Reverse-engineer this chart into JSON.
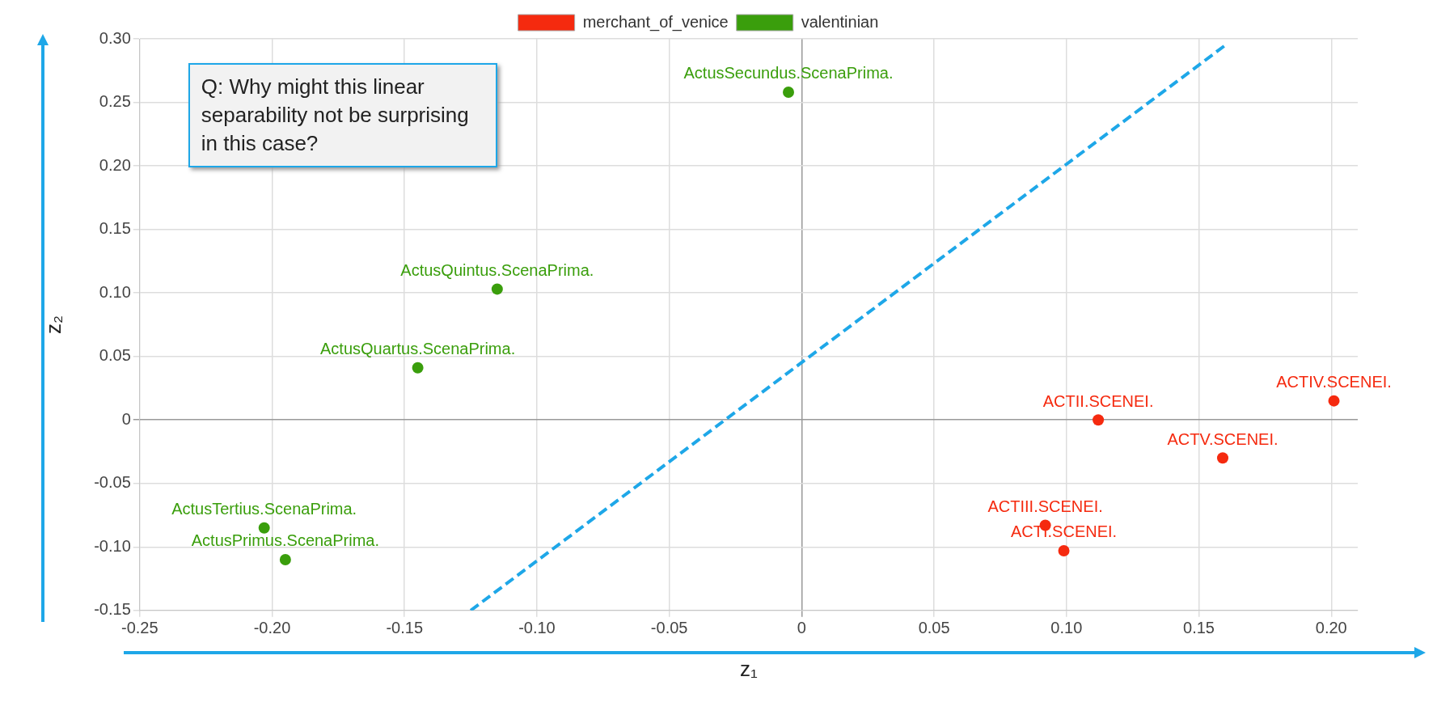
{
  "chart_data": {
    "type": "scatter",
    "xlabel": "z₁",
    "ylabel": "z₂",
    "legend": "top",
    "grid": true,
    "marker": "circle",
    "xlim": [
      -0.25,
      0.21
    ],
    "ylim": [
      -0.15,
      0.3
    ],
    "xticks": [
      {
        "value": -0.25,
        "label": "-0.25"
      },
      {
        "value": -0.2,
        "label": "-0.20"
      },
      {
        "value": -0.15,
        "label": "-0.15"
      },
      {
        "value": -0.1,
        "label": "-0.10"
      },
      {
        "value": -0.05,
        "label": "-0.05"
      },
      {
        "value": 0,
        "label": "0"
      },
      {
        "value": 0.05,
        "label": "0.05"
      },
      {
        "value": 0.1,
        "label": "0.10"
      },
      {
        "value": 0.15,
        "label": "0.15"
      },
      {
        "value": 0.2,
        "label": "0.20"
      }
    ],
    "yticks": [
      {
        "value": -0.15,
        "label": "-0.15"
      },
      {
        "value": -0.1,
        "label": "-0.10"
      },
      {
        "value": -0.05,
        "label": "-0.05"
      },
      {
        "value": 0,
        "label": "0"
      },
      {
        "value": 0.05,
        "label": "0.05"
      },
      {
        "value": 0.1,
        "label": "0.10"
      },
      {
        "value": 0.15,
        "label": "0.15"
      },
      {
        "value": 0.2,
        "label": "0.20"
      },
      {
        "value": 0.25,
        "label": "0.25"
      },
      {
        "value": 0.3,
        "label": "0.30"
      }
    ],
    "series": [
      {
        "name": "merchant_of_venice",
        "color": "#f52a0f",
        "type": "scatter",
        "x": [
          0.112,
          0.201,
          0.159,
          0.092,
          0.099
        ],
        "values": [
          0.0,
          0.015,
          -0.03,
          -0.083,
          -0.103
        ]
      },
      {
        "name": "valentinian",
        "color": "#3a9e0c",
        "type": "scatter",
        "x": [
          -0.005,
          -0.115,
          -0.145,
          -0.203,
          -0.195
        ],
        "values": [
          0.258,
          0.103,
          0.041,
          -0.085,
          -0.11
        ]
      },
      {
        "type": "line",
        "color": "#1ea7e8",
        "line_style": "dashed",
        "marker": "none",
        "x": [
          -0.125,
          0.16
        ],
        "values": [
          -0.15,
          0.295
        ]
      }
    ],
    "annotations": [
      "Q: Why might this linear separability not be surprising in this case?",
      {
        "text": "ACTII.SCENEI.",
        "x": 0.112,
        "y": 0.0
      },
      {
        "text": "ACTIV.SCENEI.",
        "x": 0.201,
        "y": 0.015
      },
      {
        "text": "ACTV.SCENEI.",
        "x": 0.159,
        "y": -0.03
      },
      {
        "text": "ACTIII.SCENEI.",
        "x": 0.092,
        "y": -0.083
      },
      {
        "text": "ACTI.SCENEI.",
        "x": 0.099,
        "y": -0.103
      },
      {
        "text": "ActusSecundus.ScenaPrima.",
        "x": -0.005,
        "y": 0.258
      },
      {
        "text": "ActusQuintus.ScenaPrima.",
        "x": -0.115,
        "y": 0.103
      },
      {
        "text": "ActusQuartus.ScenaPrima.",
        "x": -0.145,
        "y": 0.041
      },
      {
        "text": "ActusTertius.ScenaPrima.",
        "x": -0.203,
        "y": -0.085
      },
      {
        "text": "ActusPrimus.ScenaPrima.",
        "x": -0.195,
        "y": -0.11
      }
    ]
  }
}
